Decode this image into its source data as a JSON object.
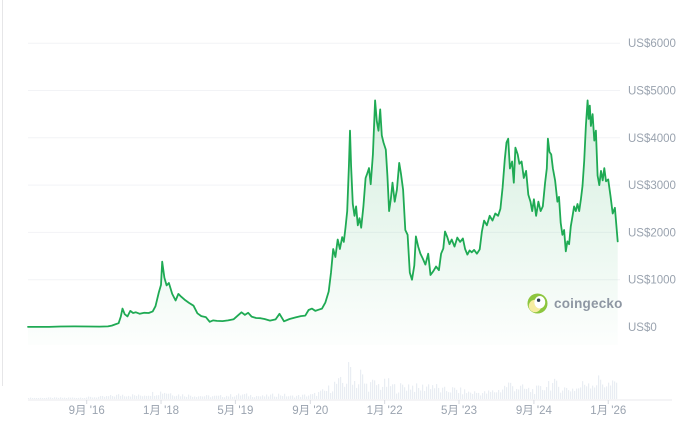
{
  "watermark": {
    "text": "coingecko"
  },
  "colors": {
    "background": "#ffffff",
    "line_green": "#1faa54",
    "grid": "#f2f3f6",
    "axis_text": "#9aa3af",
    "axis_line": "#e8eaee",
    "tick": "#d8dbe1",
    "volume_bar": "#e9edf3",
    "watermark_text": "#8e97a3",
    "window_edge": "#e6e6e8",
    "logo_green": "#8dc63f",
    "logo_cream": "#f6eca0",
    "logo_face": "#ffffff",
    "logo_eye": "#2a3b51"
  },
  "chart_data": {
    "type": "area",
    "title": "",
    "currency": "US$",
    "grid": true,
    "legend": "none",
    "y_axis": {
      "range": [
        0,
        6000
      ],
      "grid_step": 1000,
      "labels": [
        {
          "text": "US$6000",
          "value": 6000
        },
        {
          "text": "US$5000",
          "value": 5000
        },
        {
          "text": "US$4000",
          "value": 4000
        },
        {
          "text": "US$3000",
          "value": 3000
        },
        {
          "text": "US$2000",
          "value": 2000
        },
        {
          "text": "US$1000",
          "value": 1000
        },
        {
          "text": "US$0",
          "value": 0
        }
      ]
    },
    "x_axis": {
      "time_range": [
        2015.62,
        2026.17
      ],
      "labels": [
        {
          "text": "9月 '16",
          "t": 2016.67
        },
        {
          "text": "1月 '18",
          "t": 2018.0
        },
        {
          "text": "5月 '19",
          "t": 2019.33
        },
        {
          "text": "9月 '20",
          "t": 2020.67
        },
        {
          "text": "1月 '22",
          "t": 2022.0
        },
        {
          "text": "5月 '23",
          "t": 2023.33
        },
        {
          "text": "9月 '24",
          "t": 2024.67
        },
        {
          "text": "1月 '26",
          "t": 2026.0
        }
      ]
    },
    "series": [
      {
        "name": "price-usd",
        "points": [
          [
            2015.62,
            3
          ],
          [
            2015.8,
            2
          ],
          [
            2016.0,
            2
          ],
          [
            2016.2,
            10
          ],
          [
            2016.45,
            13
          ],
          [
            2016.7,
            11
          ],
          [
            2016.9,
            8
          ],
          [
            2017.05,
            12
          ],
          [
            2017.12,
            30
          ],
          [
            2017.18,
            55
          ],
          [
            2017.24,
            80
          ],
          [
            2017.28,
            220
          ],
          [
            2017.31,
            390
          ],
          [
            2017.35,
            270
          ],
          [
            2017.4,
            225
          ],
          [
            2017.45,
            340
          ],
          [
            2017.5,
            295
          ],
          [
            2017.55,
            310
          ],
          [
            2017.62,
            280
          ],
          [
            2017.7,
            300
          ],
          [
            2017.78,
            295
          ],
          [
            2017.85,
            330
          ],
          [
            2017.9,
            440
          ],
          [
            2017.96,
            730
          ],
          [
            2018.0,
            890
          ],
          [
            2018.02,
            1380
          ],
          [
            2018.06,
            1040
          ],
          [
            2018.1,
            880
          ],
          [
            2018.14,
            930
          ],
          [
            2018.2,
            700
          ],
          [
            2018.26,
            560
          ],
          [
            2018.31,
            700
          ],
          [
            2018.36,
            640
          ],
          [
            2018.42,
            580
          ],
          [
            2018.5,
            510
          ],
          [
            2018.58,
            450
          ],
          [
            2018.65,
            290
          ],
          [
            2018.72,
            230
          ],
          [
            2018.8,
            210
          ],
          [
            2018.87,
            110
          ],
          [
            2018.93,
            140
          ],
          [
            2019.0,
            130
          ],
          [
            2019.1,
            125
          ],
          [
            2019.2,
            140
          ],
          [
            2019.3,
            165
          ],
          [
            2019.38,
            250
          ],
          [
            2019.44,
            310
          ],
          [
            2019.5,
            255
          ],
          [
            2019.56,
            300
          ],
          [
            2019.62,
            220
          ],
          [
            2019.7,
            190
          ],
          [
            2019.78,
            185
          ],
          [
            2019.85,
            170
          ],
          [
            2019.95,
            135
          ],
          [
            2020.05,
            160
          ],
          [
            2020.12,
            280
          ],
          [
            2020.2,
            120
          ],
          [
            2020.3,
            170
          ],
          [
            2020.4,
            200
          ],
          [
            2020.5,
            230
          ],
          [
            2020.58,
            240
          ],
          [
            2020.64,
            360
          ],
          [
            2020.7,
            390
          ],
          [
            2020.76,
            340
          ],
          [
            2020.82,
            365
          ],
          [
            2020.88,
            390
          ],
          [
            2020.94,
            520
          ],
          [
            2021.0,
            750
          ],
          [
            2021.04,
            1150
          ],
          [
            2021.08,
            1650
          ],
          [
            2021.12,
            1480
          ],
          [
            2021.16,
            1850
          ],
          [
            2021.2,
            1650
          ],
          [
            2021.24,
            1900
          ],
          [
            2021.27,
            1800
          ],
          [
            2021.3,
            2100
          ],
          [
            2021.33,
            2450
          ],
          [
            2021.36,
            3400
          ],
          [
            2021.38,
            4150
          ],
          [
            2021.4,
            3400
          ],
          [
            2021.43,
            2600
          ],
          [
            2021.46,
            2350
          ],
          [
            2021.49,
            2550
          ],
          [
            2021.52,
            2150
          ],
          [
            2021.55,
            2300
          ],
          [
            2021.58,
            2100
          ],
          [
            2021.62,
            2550
          ],
          [
            2021.66,
            3150
          ],
          [
            2021.69,
            3250
          ],
          [
            2021.72,
            3360
          ],
          [
            2021.75,
            3020
          ],
          [
            2021.79,
            3650
          ],
          [
            2021.83,
            4790
          ],
          [
            2021.86,
            4350
          ],
          [
            2021.89,
            4150
          ],
          [
            2021.92,
            4600
          ],
          [
            2021.95,
            4050
          ],
          [
            2021.98,
            3900
          ],
          [
            2022.02,
            3750
          ],
          [
            2022.05,
            3200
          ],
          [
            2022.08,
            2450
          ],
          [
            2022.11,
            2700
          ],
          [
            2022.14,
            3050
          ],
          [
            2022.18,
            2650
          ],
          [
            2022.22,
            2900
          ],
          [
            2022.26,
            3470
          ],
          [
            2022.29,
            3250
          ],
          [
            2022.33,
            2900
          ],
          [
            2022.37,
            2050
          ],
          [
            2022.41,
            1950
          ],
          [
            2022.45,
            1150
          ],
          [
            2022.49,
            1000
          ],
          [
            2022.53,
            1300
          ],
          [
            2022.56,
            1915
          ],
          [
            2022.6,
            1700
          ],
          [
            2022.64,
            1550
          ],
          [
            2022.68,
            1450
          ],
          [
            2022.73,
            1320
          ],
          [
            2022.78,
            1550
          ],
          [
            2022.82,
            1100
          ],
          [
            2022.87,
            1180
          ],
          [
            2022.92,
            1280
          ],
          [
            2022.97,
            1200
          ],
          [
            2023.01,
            1550
          ],
          [
            2023.05,
            1660
          ],
          [
            2023.08,
            2020
          ],
          [
            2023.12,
            1900
          ],
          [
            2023.16,
            1750
          ],
          [
            2023.2,
            1850
          ],
          [
            2023.25,
            1700
          ],
          [
            2023.3,
            1890
          ],
          [
            2023.35,
            1800
          ],
          [
            2023.4,
            1870
          ],
          [
            2023.44,
            1650
          ],
          [
            2023.48,
            1530
          ],
          [
            2023.52,
            1620
          ],
          [
            2023.56,
            1580
          ],
          [
            2023.6,
            1630
          ],
          [
            2023.65,
            1550
          ],
          [
            2023.7,
            1640
          ],
          [
            2023.74,
            2020
          ],
          [
            2023.78,
            2250
          ],
          [
            2023.83,
            2150
          ],
          [
            2023.88,
            2350
          ],
          [
            2023.93,
            2250
          ],
          [
            2023.98,
            2400
          ],
          [
            2024.03,
            2350
          ],
          [
            2024.07,
            2500
          ],
          [
            2024.11,
            2950
          ],
          [
            2024.15,
            3550
          ],
          [
            2024.18,
            3900
          ],
          [
            2024.21,
            3980
          ],
          [
            2024.24,
            3350
          ],
          [
            2024.28,
            3500
          ],
          [
            2024.31,
            3050
          ],
          [
            2024.34,
            3790
          ],
          [
            2024.38,
            3650
          ],
          [
            2024.41,
            3450
          ],
          [
            2024.45,
            3500
          ],
          [
            2024.49,
            3150
          ],
          [
            2024.53,
            3300
          ],
          [
            2024.57,
            2800
          ],
          [
            2024.61,
            2650
          ],
          [
            2024.64,
            2450
          ],
          [
            2024.67,
            2700
          ],
          [
            2024.71,
            2350
          ],
          [
            2024.75,
            2650
          ],
          [
            2024.79,
            2450
          ],
          [
            2024.83,
            2550
          ],
          [
            2024.87,
            3050
          ],
          [
            2024.9,
            3350
          ],
          [
            2024.92,
            3980
          ],
          [
            2024.95,
            3700
          ],
          [
            2024.98,
            3650
          ],
          [
            2025.01,
            3350
          ],
          [
            2025.05,
            3100
          ],
          [
            2025.09,
            2650
          ],
          [
            2025.12,
            2750
          ],
          [
            2025.15,
            2200
          ],
          [
            2025.18,
            1950
          ],
          [
            2025.21,
            2050
          ],
          [
            2025.24,
            1600
          ],
          [
            2025.27,
            1810
          ],
          [
            2025.3,
            1750
          ],
          [
            2025.33,
            2130
          ],
          [
            2025.36,
            2340
          ],
          [
            2025.39,
            2550
          ],
          [
            2025.42,
            2450
          ],
          [
            2025.45,
            2600
          ],
          [
            2025.48,
            2450
          ],
          [
            2025.51,
            2700
          ],
          [
            2025.54,
            2980
          ],
          [
            2025.57,
            3510
          ],
          [
            2025.6,
            4260
          ],
          [
            2025.63,
            4790
          ],
          [
            2025.65,
            4400
          ],
          [
            2025.67,
            4680
          ],
          [
            2025.69,
            4250
          ],
          [
            2025.72,
            4500
          ],
          [
            2025.75,
            3940
          ],
          [
            2025.78,
            4150
          ],
          [
            2025.81,
            3200
          ],
          [
            2025.84,
            3000
          ],
          [
            2025.87,
            3300
          ],
          [
            2025.9,
            3100
          ],
          [
            2025.93,
            3360
          ],
          [
            2025.96,
            3080
          ],
          [
            2026.0,
            3120
          ],
          [
            2026.04,
            2770
          ],
          [
            2026.08,
            2400
          ],
          [
            2026.12,
            2520
          ],
          [
            2026.17,
            1810
          ]
        ]
      }
    ],
    "volume": {
      "envelope": [
        [
          2015.62,
          0.03
        ],
        [
          2016.5,
          0.04
        ],
        [
          2017.0,
          0.07
        ],
        [
          2017.3,
          0.13
        ],
        [
          2017.6,
          0.1
        ],
        [
          2018.02,
          0.22
        ],
        [
          2018.3,
          0.13
        ],
        [
          2018.7,
          0.09
        ],
        [
          2019.0,
          0.08
        ],
        [
          2019.45,
          0.13
        ],
        [
          2019.8,
          0.08
        ],
        [
          2020.12,
          0.14
        ],
        [
          2020.3,
          0.08
        ],
        [
          2020.7,
          0.12
        ],
        [
          2020.95,
          0.25
        ],
        [
          2021.1,
          0.45
        ],
        [
          2021.3,
          0.5
        ],
        [
          2021.37,
          1.0
        ],
        [
          2021.45,
          0.55
        ],
        [
          2021.52,
          0.45
        ],
        [
          2021.56,
          0.75
        ],
        [
          2021.65,
          0.4
        ],
        [
          2021.8,
          0.45
        ],
        [
          2021.9,
          0.4
        ],
        [
          2022.05,
          0.45
        ],
        [
          2022.2,
          0.32
        ],
        [
          2022.45,
          0.42
        ],
        [
          2022.6,
          0.3
        ],
        [
          2022.82,
          0.45
        ],
        [
          2023.0,
          0.25
        ],
        [
          2023.2,
          0.28
        ],
        [
          2023.5,
          0.2
        ],
        [
          2023.8,
          0.18
        ],
        [
          2024.05,
          0.26
        ],
        [
          2024.2,
          0.44
        ],
        [
          2024.35,
          0.36
        ],
        [
          2024.6,
          0.26
        ],
        [
          2024.8,
          0.3
        ],
        [
          2024.92,
          0.5
        ],
        [
          2025.1,
          0.38
        ],
        [
          2025.25,
          0.3
        ],
        [
          2025.45,
          0.32
        ],
        [
          2025.63,
          0.55
        ],
        [
          2025.75,
          0.45
        ],
        [
          2025.85,
          0.58
        ],
        [
          2025.95,
          0.45
        ],
        [
          2026.05,
          0.4
        ],
        [
          2026.17,
          0.5
        ]
      ]
    }
  }
}
